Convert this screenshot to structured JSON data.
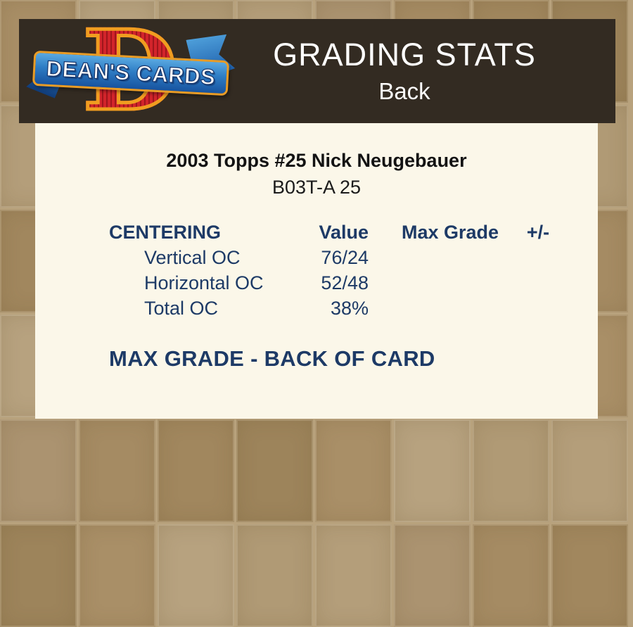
{
  "header": {
    "title": "GRADING STATS",
    "subtitle": "Back",
    "logo": {
      "letter": "D",
      "banner_text": "DEAN'S CARDS"
    }
  },
  "card": {
    "title": "2003 Topps #25 Nick Neugebauer",
    "code": "B03T-A 25"
  },
  "grading_table": {
    "headers": [
      "CENTERING",
      "Value",
      "Max Grade",
      "+/-"
    ],
    "rows": [
      {
        "label": "Vertical OC",
        "value": "76/24",
        "max_grade": "",
        "plus_minus": ""
      },
      {
        "label": "Horizontal OC",
        "value": "52/48",
        "max_grade": "",
        "plus_minus": ""
      },
      {
        "label": "Total OC",
        "value": "38%",
        "max_grade": "",
        "plus_minus": ""
      }
    ]
  },
  "footer_line": "MAX GRADE - BACK OF CARD",
  "colors": {
    "navy_text": "#1d3a66",
    "panel_cream": "#fbf7e9",
    "header_brown": "#332b22",
    "background_tan": "#b09a75",
    "logo_red": "#c8202a",
    "logo_orange": "#f09d20",
    "logo_blue": "#1a5aa8",
    "title_white": "#ffffff"
  }
}
